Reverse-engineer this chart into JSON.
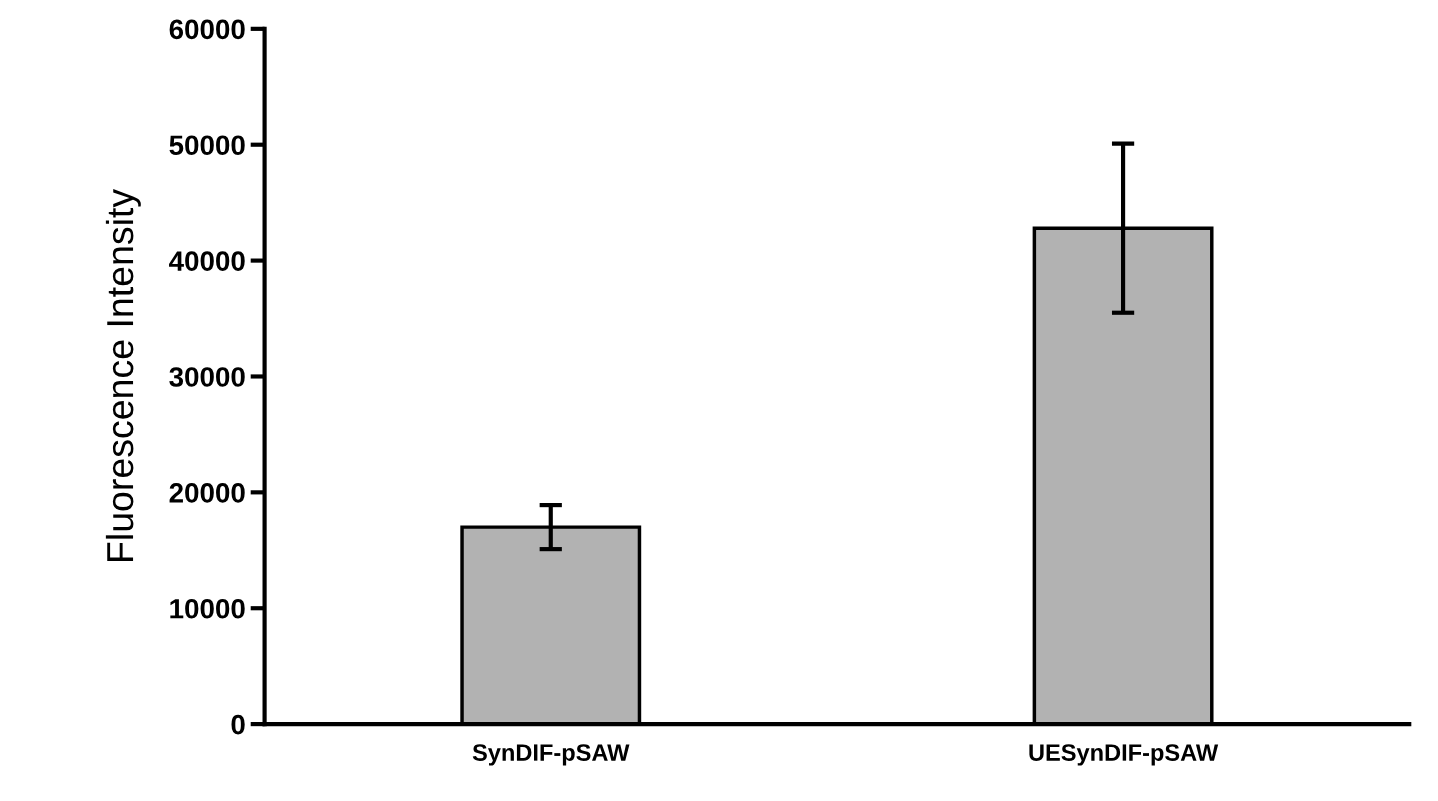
{
  "chart_data": {
    "type": "bar",
    "ylabel": "Fluorescence Intensity",
    "categories": [
      "SynDIF-pSAW",
      "UESynDIF-pSAW"
    ],
    "values": [
      17000,
      42800
    ],
    "errors": [
      1900,
      7300
    ],
    "color": "#b2b2b2",
    "ylim": [
      0,
      60000
    ],
    "yticks": [
      0,
      10000,
      20000,
      30000,
      40000,
      50000,
      60000
    ],
    "grid": false
  }
}
